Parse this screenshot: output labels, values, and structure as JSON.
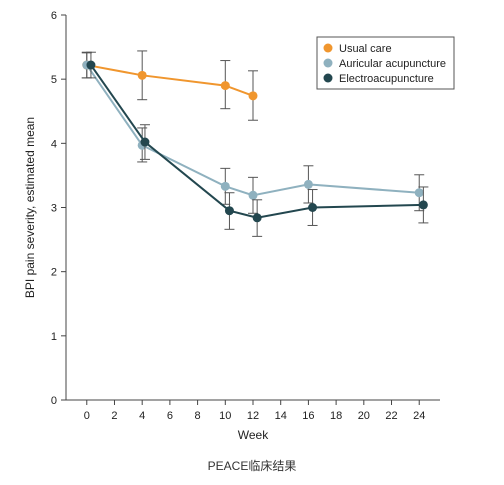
{
  "chart_data": {
    "type": "line",
    "xlabel": "Week",
    "ylabel": "BPI pain severity, estimated mean",
    "xlim": [
      -1.5,
      25.5
    ],
    "ylim": [
      0,
      6
    ],
    "xticks": [
      0,
      2,
      4,
      6,
      8,
      10,
      12,
      14,
      16,
      18,
      20,
      22,
      24
    ],
    "yticks": [
      0,
      1,
      2,
      3,
      4,
      5,
      6
    ],
    "grid": false,
    "legend_position": "top-right",
    "series": [
      {
        "name": "Usual care",
        "color": "#F0962E",
        "x": [
          0,
          4,
          10,
          12
        ],
        "y": [
          5.22,
          5.06,
          4.9,
          4.74
        ],
        "err_low": [
          5.02,
          4.68,
          4.54,
          4.36
        ],
        "err_high": [
          5.41,
          5.44,
          5.29,
          5.13
        ]
      },
      {
        "name": "Auricular acupuncture",
        "color": "#8FB1BF",
        "x": [
          0,
          4,
          10,
          12,
          16,
          24
        ],
        "y": [
          5.22,
          3.97,
          3.33,
          3.19,
          3.36,
          3.23
        ],
        "err_low": [
          5.02,
          3.71,
          3.05,
          2.91,
          3.07,
          2.95
        ],
        "err_high": [
          5.42,
          4.24,
          3.61,
          3.47,
          3.65,
          3.51
        ]
      },
      {
        "name": "Electroacupuncture",
        "color": "#23474F",
        "x": [
          0.3,
          4.2,
          10.3,
          12.3,
          16.3,
          24.3
        ],
        "y": [
          5.22,
          4.02,
          2.95,
          2.84,
          3.0,
          3.04
        ],
        "err_low": [
          5.02,
          3.75,
          2.66,
          2.55,
          2.72,
          2.76
        ],
        "err_high": [
          5.42,
          4.29,
          3.23,
          3.12,
          3.28,
          3.32
        ]
      }
    ]
  },
  "caption": "PEACE临床结果"
}
